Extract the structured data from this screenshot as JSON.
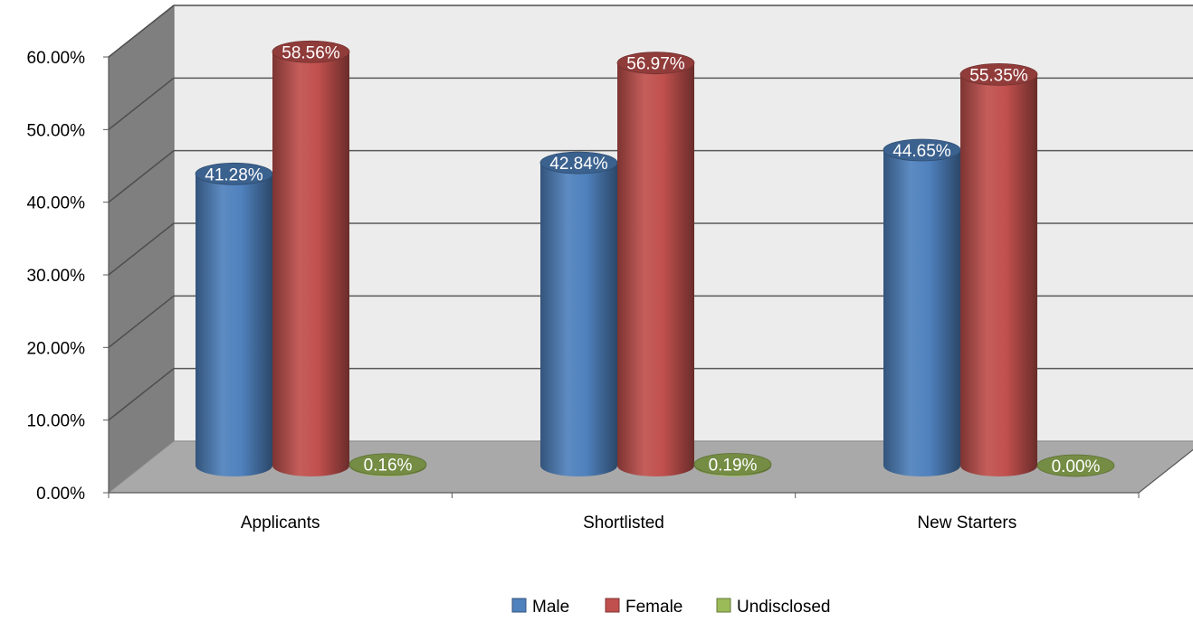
{
  "chart_data": {
    "type": "bar",
    "categories": [
      "Applicants",
      "Shortlisted",
      "New Starters"
    ],
    "series": [
      {
        "name": "Male",
        "color": "#4F81BD",
        "values": [
          41.28,
          42.84,
          44.65
        ],
        "labels": [
          "41.28%",
          "42.84%",
          "44.65%"
        ]
      },
      {
        "name": "Female",
        "color": "#C0504D",
        "values": [
          58.56,
          56.97,
          55.35
        ],
        "labels": [
          "58.56%",
          "56.97%",
          "55.35%"
        ]
      },
      {
        "name": "Undisclosed",
        "color": "#9BBB59",
        "values": [
          0.16,
          0.19,
          0.0
        ],
        "labels": [
          "0.16%",
          "0.19%",
          "0.00%"
        ]
      }
    ],
    "y_ticks": [
      "0.00%",
      "10.00%",
      "20.00%",
      "30.00%",
      "40.00%",
      "50.00%",
      "60.00%"
    ],
    "ylim": [
      0,
      60
    ],
    "grid": true,
    "legend_position": "bottom",
    "style": "3d-cylinder"
  }
}
